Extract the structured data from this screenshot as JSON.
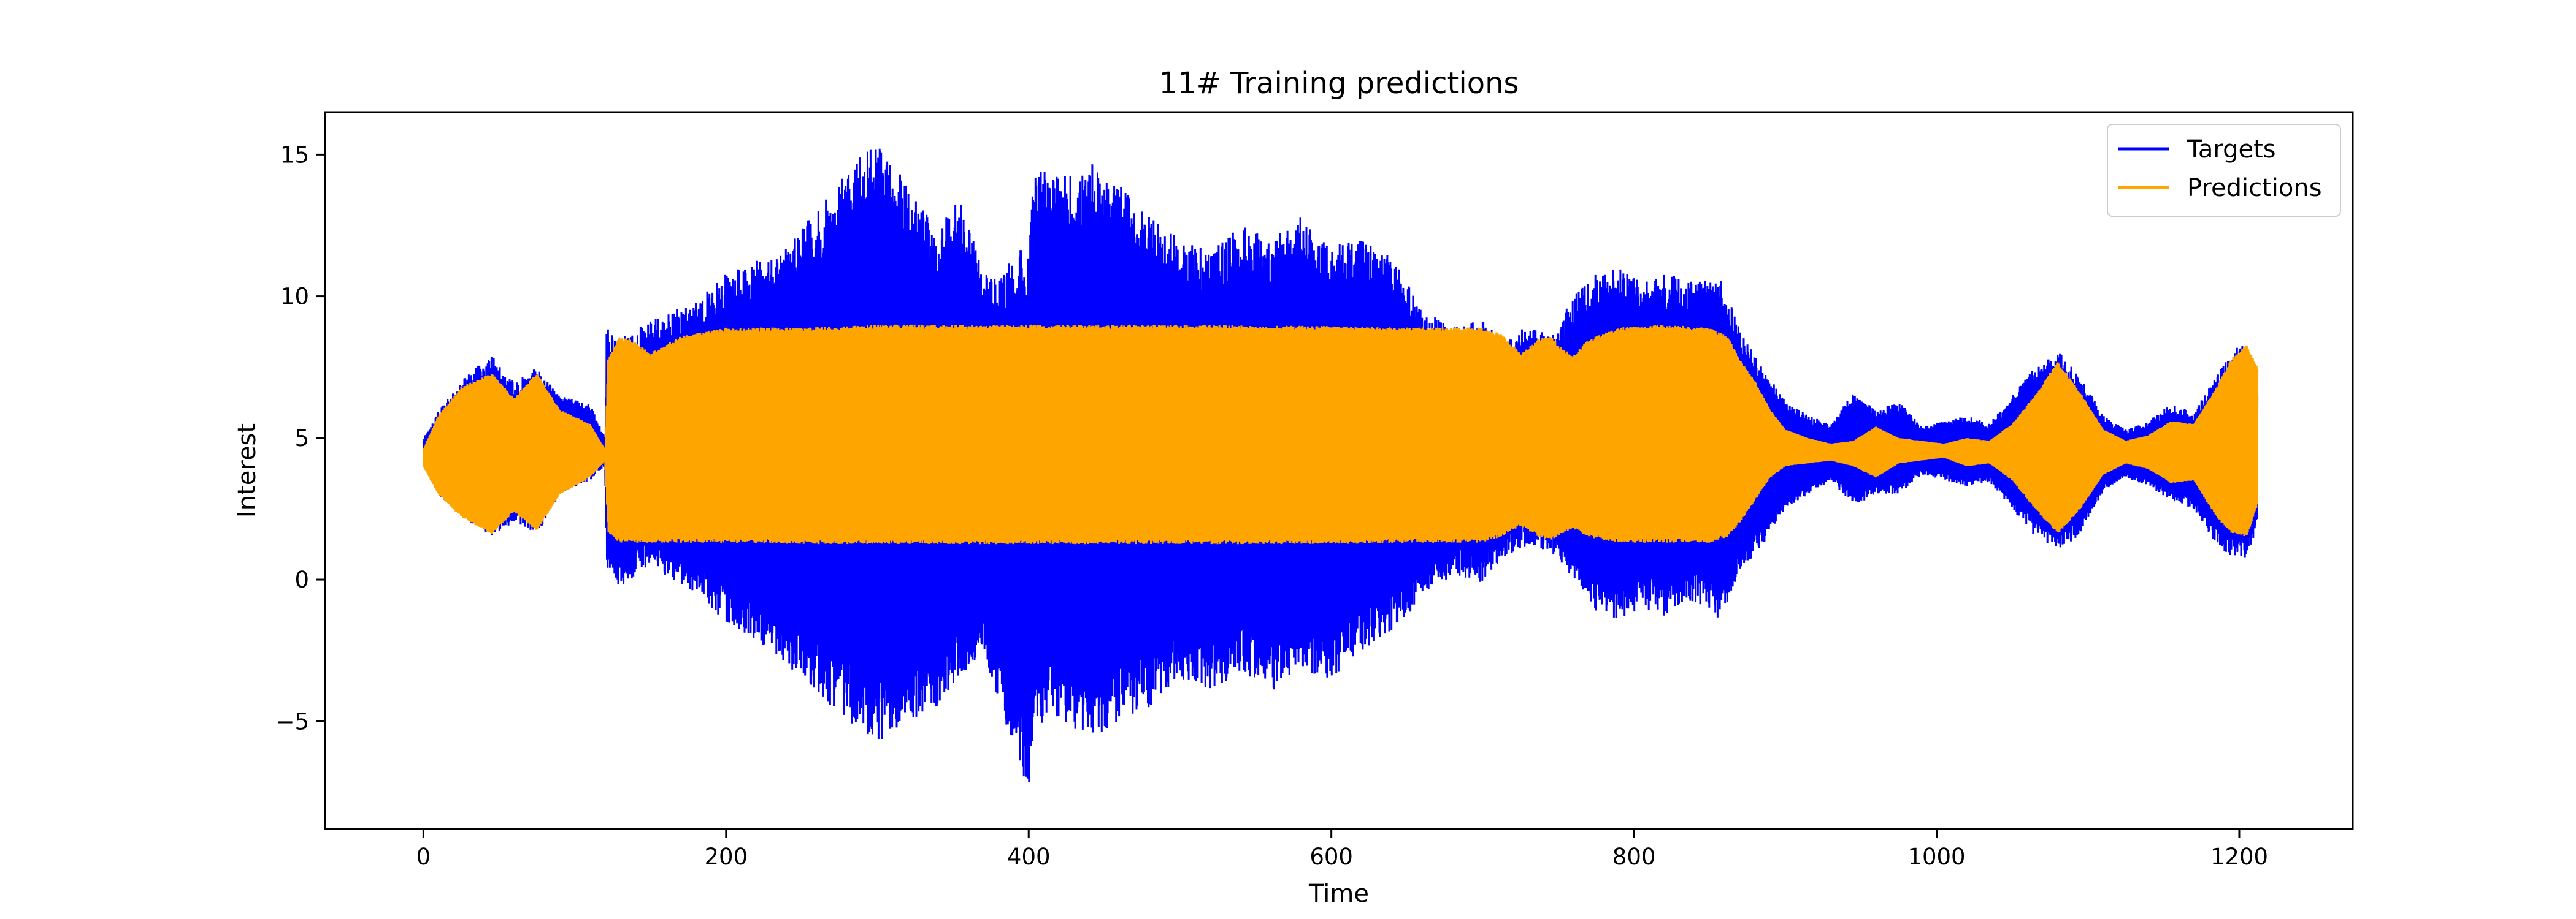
{
  "chart_data": {
    "type": "area",
    "title": "11# Training predictions",
    "xlabel": "Time",
    "ylabel": "Interest",
    "xlim": [
      -65,
      1275
    ],
    "ylim": [
      -8.8,
      16.5
    ],
    "x_ticks": [
      0,
      200,
      400,
      600,
      800,
      1000,
      1200
    ],
    "y_ticks": [
      -5,
      0,
      5,
      10,
      15
    ],
    "y_tick_labels": [
      "−5",
      "0",
      "5",
      "10",
      "15"
    ],
    "legend": {
      "position": "upper right",
      "entries": [
        "Targets",
        "Predictions"
      ]
    },
    "grid": false,
    "series": [
      {
        "name": "Targets",
        "color": "#0000ff",
        "x": [
          0,
          10,
          25,
          45,
          60,
          75,
          90,
          110,
          120,
          121,
          130,
          150,
          180,
          200,
          230,
          260,
          280,
          300,
          305,
          320,
          340,
          355,
          370,
          380,
          395,
          400,
          402,
          405,
          420,
          440,
          460,
          480,
          500,
          520,
          540,
          560,
          580,
          600,
          620,
          640,
          660,
          680,
          700,
          715,
          730,
          745,
          760,
          775,
          790,
          805,
          820,
          840,
          858,
          870,
          885,
          900,
          915,
          930,
          945,
          960,
          975,
          990,
          1005,
          1020,
          1035,
          1050,
          1065,
          1080,
          1095,
          1110,
          1125,
          1140,
          1155,
          1170,
          1185,
          1195,
          1205,
          1212
        ],
        "upper": [
          5.0,
          6.0,
          7.0,
          8.0,
          7.0,
          7.5,
          6.5,
          6.2,
          5.0,
          8.9,
          8.5,
          9.2,
          9.8,
          10.8,
          11.5,
          13.0,
          14.5,
          15.5,
          15.2,
          14.0,
          12.5,
          13.5,
          11.0,
          10.5,
          12.0,
          11.5,
          14.0,
          14.8,
          14.2,
          14.8,
          14.0,
          13.0,
          12.0,
          11.6,
          12.5,
          12.0,
          12.8,
          11.8,
          12.0,
          11.5,
          9.5,
          9.0,
          9.2,
          8.5,
          9.0,
          8.6,
          10.0,
          10.8,
          11.0,
          10.5,
          10.8,
          10.6,
          10.6,
          8.8,
          7.5,
          6.3,
          5.8,
          5.5,
          6.6,
          6.0,
          6.3,
          5.4,
          5.6,
          5.8,
          5.5,
          6.5,
          7.5,
          8.1,
          7.2,
          5.8,
          5.3,
          5.6,
          6.2,
          5.9,
          7.2,
          8.2,
          8.3,
          7.0
        ],
        "lower": [
          4.0,
          3.0,
          2.2,
          1.5,
          2.0,
          1.6,
          3.0,
          3.5,
          4.0,
          0.2,
          -0.3,
          0.5,
          -0.5,
          -1.5,
          -2.5,
          -4.0,
          -5.0,
          -5.8,
          -5.6,
          -5.0,
          -4.5,
          -3.5,
          -2.5,
          -4.5,
          -6.5,
          -7.8,
          -6.0,
          -5.5,
          -5.0,
          -5.8,
          -5.0,
          -4.5,
          -3.5,
          -4.0,
          -3.2,
          -4.0,
          -3.2,
          -3.5,
          -2.5,
          -1.8,
          -0.8,
          0.2,
          -0.2,
          0.8,
          1.2,
          1.0,
          0.0,
          -1.2,
          -1.5,
          -1.0,
          -1.3,
          -0.8,
          -1.5,
          0.3,
          1.2,
          2.5,
          3.0,
          3.5,
          2.6,
          3.0,
          3.0,
          3.7,
          3.5,
          3.3,
          3.4,
          2.5,
          1.5,
          1.0,
          1.5,
          3.1,
          3.6,
          3.3,
          2.8,
          2.5,
          1.2,
          0.6,
          0.8,
          1.8
        ]
      },
      {
        "name": "Predictions",
        "color": "#ffa500",
        "x": [
          0,
          10,
          25,
          45,
          60,
          75,
          90,
          110,
          120,
          122,
          130,
          140,
          150,
          170,
          200,
          250,
          300,
          400,
          500,
          600,
          650,
          700,
          712,
          725,
          737,
          745,
          752,
          760,
          770,
          790,
          820,
          850,
          862,
          870,
          880,
          890,
          900,
          915,
          930,
          945,
          960,
          975,
          990,
          1005,
          1020,
          1035,
          1050,
          1065,
          1080,
          1095,
          1110,
          1125,
          1140,
          1155,
          1170,
          1185,
          1195,
          1205,
          1212
        ],
        "upper": [
          4.6,
          5.8,
          6.8,
          7.3,
          6.4,
          7.3,
          6.0,
          5.5,
          4.6,
          7.8,
          8.6,
          8.4,
          8.0,
          8.6,
          8.9,
          8.9,
          9.0,
          9.0,
          9.0,
          8.95,
          8.9,
          8.9,
          8.7,
          8.0,
          8.5,
          8.6,
          8.2,
          7.9,
          8.5,
          8.9,
          9.0,
          8.9,
          8.6,
          7.8,
          7.0,
          6.0,
          5.3,
          5.0,
          4.8,
          4.9,
          5.4,
          5.0,
          4.9,
          4.8,
          5.0,
          4.9,
          5.5,
          6.5,
          7.7,
          6.6,
          5.3,
          4.9,
          5.1,
          5.6,
          5.5,
          6.8,
          7.8,
          8.3,
          7.5
        ],
        "lower": [
          4.0,
          3.0,
          2.2,
          1.6,
          2.4,
          1.7,
          3.0,
          3.6,
          4.2,
          1.6,
          1.3,
          1.3,
          1.3,
          1.3,
          1.3,
          1.25,
          1.25,
          1.25,
          1.25,
          1.25,
          1.3,
          1.3,
          1.5,
          1.9,
          1.5,
          1.4,
          1.6,
          1.8,
          1.5,
          1.3,
          1.3,
          1.3,
          1.5,
          2.0,
          2.8,
          3.6,
          4.0,
          4.1,
          4.2,
          4.0,
          3.6,
          4.1,
          4.2,
          4.3,
          4.0,
          4.1,
          3.5,
          2.5,
          1.6,
          2.5,
          3.7,
          4.1,
          3.9,
          3.4,
          3.5,
          2.2,
          1.6,
          1.5,
          2.6
        ]
      }
    ]
  }
}
